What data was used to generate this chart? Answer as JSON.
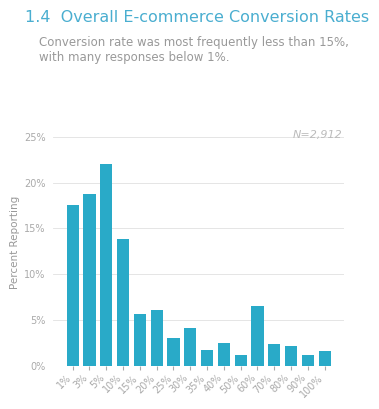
{
  "title": "1.4  Overall E-commerce Conversion Rates",
  "subtitle": "Conversion rate was most frequently less than 15%,\nwith many responses below 1%.",
  "n_label": "N=2,912",
  "categories": [
    "1%",
    "3%",
    "5%",
    "10%",
    "15%",
    "20%",
    "25%",
    "30%",
    "35%",
    "40%",
    "50%",
    "60%",
    "70%",
    "80%",
    "90%",
    "100%"
  ],
  "values": [
    17.5,
    18.7,
    22.0,
    13.8,
    5.6,
    6.1,
    3.0,
    4.1,
    1.7,
    2.5,
    1.1,
    6.5,
    2.4,
    2.1,
    1.2,
    1.6
  ],
  "bar_color": "#29aac8",
  "ylabel": "Percent Reporting",
  "ylim": [
    0,
    27
  ],
  "yticks": [
    0,
    5,
    10,
    15,
    20,
    25
  ],
  "ytick_labels": [
    "0%",
    "5%",
    "10%",
    "15%",
    "20%",
    "25%"
  ],
  "title_color": "#4aaed0",
  "subtitle_color": "#999999",
  "n_label_color": "#bbbbbb",
  "ylabel_color": "#999999",
  "tick_color": "#aaaaaa",
  "grid_color": "#e0e0e0",
  "bg_color": "#ffffff",
  "title_fontsize": 11.5,
  "subtitle_fontsize": 8.5,
  "ylabel_fontsize": 7.5,
  "tick_fontsize": 7.0,
  "n_label_fontsize": 8.0
}
